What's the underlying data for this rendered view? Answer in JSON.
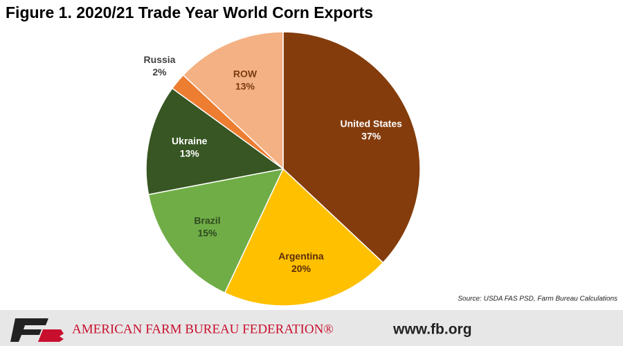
{
  "chart_data": {
    "type": "pie",
    "title": "Figure 1. 2020/21 Trade Year World Corn Exports",
    "categories": [
      "United States",
      "Argentina",
      "Brazil",
      "Ukraine",
      "Russia",
      "ROW"
    ],
    "values": [
      37,
      20,
      15,
      13,
      2,
      13
    ],
    "value_labels": [
      "37%",
      "20%",
      "15%",
      "13%",
      "2%",
      "13%"
    ],
    "colors": [
      "#843c0c",
      "#ffc000",
      "#70ad47",
      "#375623",
      "#ed7d31",
      "#f4b183"
    ],
    "label_colors": [
      "#ffffff",
      "#5a2d08",
      "#2f4a1e",
      "#ffffff",
      "#404040",
      "#7a3c12"
    ],
    "source": "Source: USDA FAS PSD, Farm Bureau Calculations"
  },
  "footer": {
    "organization": "AMERICAN FARM BUREAU FEDERATION®",
    "website": "www.fb.org"
  }
}
